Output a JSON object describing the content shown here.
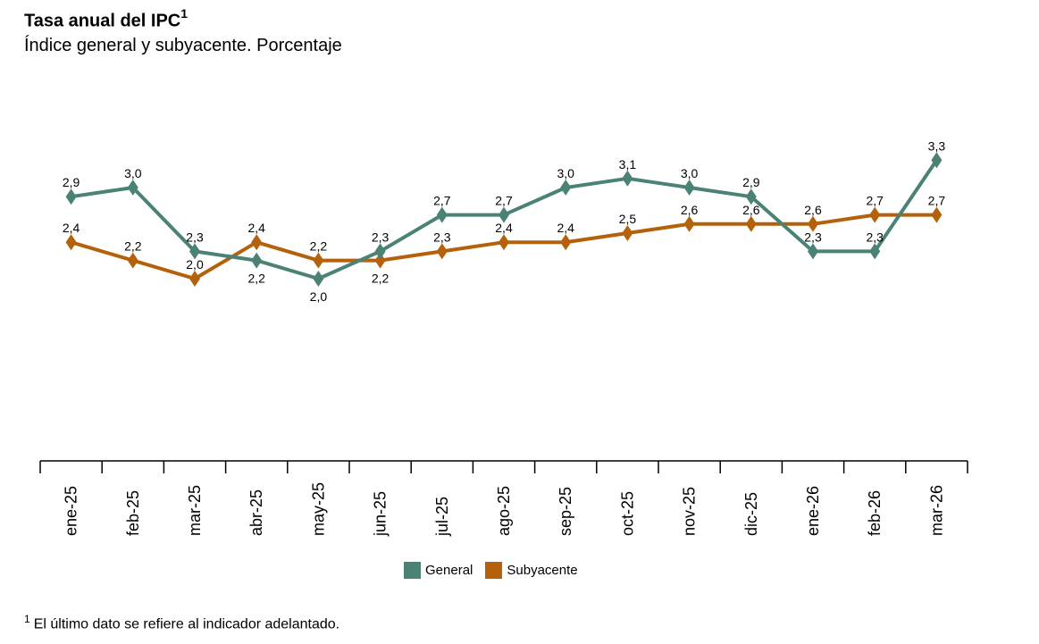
{
  "chart_data": {
    "type": "line",
    "title": "Tasa anual del IPC",
    "title_sup": "1",
    "subtitle": "Índice general y subyacente. Porcentaje",
    "categories": [
      "ene-25",
      "feb-25",
      "mar-25",
      "abr-25",
      "may-25",
      "jun-25",
      "jul-25",
      "ago-25",
      "sep-25",
      "oct-25",
      "nov-25",
      "dic-25",
      "ene-26",
      "feb-26",
      "mar-26"
    ],
    "series": [
      {
        "name": "General",
        "color": "#4a8276",
        "values": [
          2.9,
          3.0,
          2.3,
          2.2,
          2.0,
          2.3,
          2.7,
          2.7,
          3.0,
          3.1,
          3.0,
          2.9,
          2.3,
          2.3,
          3.3
        ]
      },
      {
        "name": "Subyacente",
        "color": "#b5610b",
        "values": [
          2.4,
          2.2,
          2.0,
          2.4,
          2.2,
          2.2,
          2.3,
          2.4,
          2.4,
          2.5,
          2.6,
          2.6,
          2.6,
          2.7,
          2.7
        ]
      }
    ],
    "ylim": [
      0,
      4
    ],
    "grid": false,
    "legend": "bottom",
    "decimal_separator": ","
  },
  "footnote": {
    "marker": "1",
    "text": "El último dato se refiere al indicador adelantado."
  }
}
